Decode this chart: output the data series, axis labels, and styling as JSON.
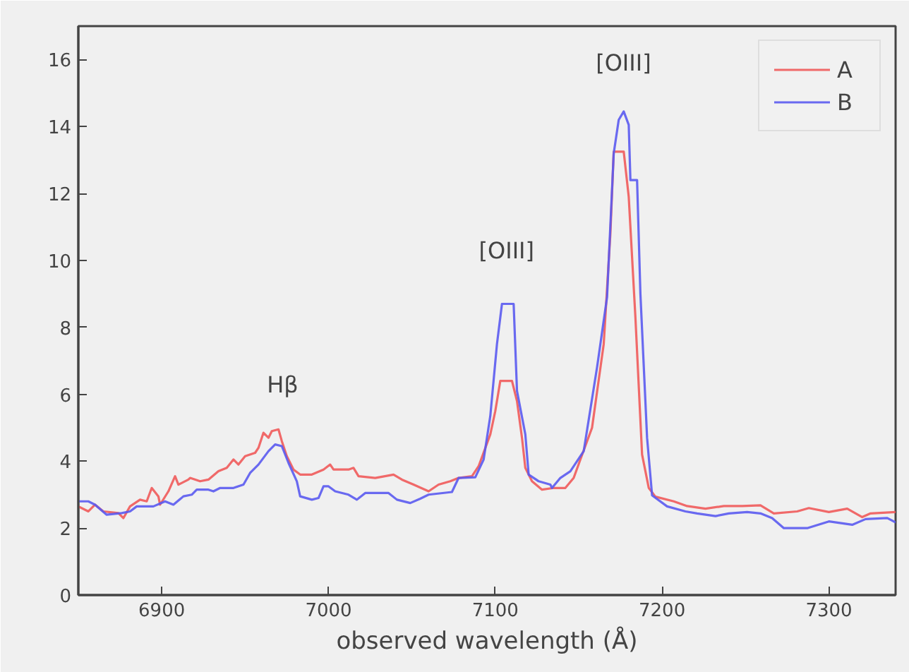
{
  "chart_data": {
    "type": "line",
    "xlabel": "observed wavelength (Å)",
    "xlim": [
      6850,
      7340
    ],
    "ylim": [
      0,
      17
    ],
    "xticks": [
      6900,
      7000,
      7100,
      7200,
      7300
    ],
    "yticks": [
      0,
      2,
      4,
      6,
      8,
      10,
      12,
      14,
      16
    ],
    "grid": false,
    "legend": "top right",
    "line_style": "solid",
    "marker": "none",
    "annotations": [
      "Hβ",
      "[OIII]",
      "[OIII]"
    ],
    "series": [
      {
        "name": "A",
        "color": "#f05a5a",
        "x": [
          6850,
          6856,
          6860,
          6865,
          6874,
          6877,
          6881,
          6887,
          6891,
          6894,
          6898,
          6899,
          6904,
          6908,
          6910,
          6916,
          6917,
          6923,
          6928,
          6934,
          6939,
          6943,
          6946,
          6950,
          6956,
          6958,
          6961,
          6964,
          6966,
          6970,
          6972,
          6975,
          6979,
          6983,
          6990,
          6997,
          7001,
          7003,
          7008,
          7012,
          7015,
          7018,
          7028,
          7039,
          7044,
          7051,
          7060,
          7066,
          7073,
          7078,
          7086,
          7090,
          7097,
          7100,
          7103,
          7110,
          7113,
          7116,
          7118,
          7122,
          7128,
          7135,
          7142,
          7147,
          7151,
          7158,
          7165,
          7169,
          7171,
          7177,
          7180,
          7184,
          7188,
          7192,
          7196,
          7207,
          7215,
          7226,
          7237,
          7248,
          7259,
          7267,
          7281,
          7288,
          7300,
          7311,
          7320,
          7325,
          7340
        ],
        "values": [
          2.65,
          2.5,
          2.7,
          2.5,
          2.45,
          2.3,
          2.65,
          2.85,
          2.8,
          3.2,
          2.95,
          2.7,
          3.1,
          3.55,
          3.3,
          3.45,
          3.5,
          3.4,
          3.45,
          3.7,
          3.8,
          4.05,
          3.9,
          4.15,
          4.25,
          4.4,
          4.85,
          4.7,
          4.9,
          4.95,
          4.6,
          4.15,
          3.75,
          3.6,
          3.6,
          3.75,
          3.9,
          3.75,
          3.75,
          3.75,
          3.8,
          3.55,
          3.5,
          3.6,
          3.45,
          3.3,
          3.1,
          3.3,
          3.4,
          3.5,
          3.55,
          3.85,
          4.8,
          5.5,
          6.4,
          6.4,
          5.8,
          4.7,
          3.8,
          3.4,
          3.15,
          3.2,
          3.2,
          3.5,
          4.05,
          5.0,
          7.5,
          10.8,
          13.25,
          13.25,
          11.9,
          8.3,
          4.2,
          3.2,
          2.94,
          2.8,
          2.66,
          2.58,
          2.66,
          2.66,
          2.68,
          2.44,
          2.5,
          2.6,
          2.48,
          2.58,
          2.33,
          2.44,
          2.48
        ]
      },
      {
        "name": "B",
        "color": "#5a5af0",
        "x": [
          6850,
          6856,
          6860,
          6867,
          6876,
          6881,
          6885,
          6895,
          6902,
          6907,
          6913,
          6918,
          6921,
          6928,
          6931,
          6935,
          6943,
          6949,
          6953,
          6958,
          6964,
          6968,
          6972,
          6976,
          6981,
          6983,
          6990,
          6994,
          6997,
          7000,
          7004,
          7012,
          7017,
          7022,
          7036,
          7041,
          7049,
          7055,
          7060,
          7074,
          7078,
          7088,
          7093,
          7097,
          7101,
          7104,
          7111,
          7113,
          7118,
          7120,
          7126,
          7133,
          7134,
          7139,
          7145,
          7153,
          7161,
          7167,
          7171,
          7174,
          7177,
          7180,
          7181,
          7185,
          7187,
          7191,
          7194,
          7203,
          7214,
          7221,
          7232,
          7240,
          7251,
          7259,
          7266,
          7273,
          7287,
          7300,
          7314,
          7322,
          7335,
          7340
        ],
        "values": [
          2.8,
          2.8,
          2.7,
          2.4,
          2.45,
          2.5,
          2.65,
          2.65,
          2.8,
          2.7,
          2.95,
          3.0,
          3.15,
          3.15,
          3.1,
          3.2,
          3.2,
          3.3,
          3.65,
          3.9,
          4.3,
          4.5,
          4.45,
          3.95,
          3.4,
          2.95,
          2.85,
          2.9,
          3.25,
          3.25,
          3.1,
          3.0,
          2.85,
          3.05,
          3.05,
          2.85,
          2.75,
          2.88,
          3.0,
          3.08,
          3.5,
          3.52,
          4.05,
          5.35,
          7.5,
          8.7,
          8.7,
          6.1,
          4.8,
          3.6,
          3.4,
          3.3,
          3.2,
          3.5,
          3.7,
          4.3,
          6.8,
          8.9,
          13.2,
          14.2,
          14.45,
          14.05,
          12.4,
          12.4,
          9.0,
          4.7,
          2.98,
          2.65,
          2.5,
          2.44,
          2.36,
          2.44,
          2.48,
          2.44,
          2.3,
          2.0,
          2.0,
          2.2,
          2.1,
          2.27,
          2.3,
          2.17
        ]
      }
    ]
  }
}
